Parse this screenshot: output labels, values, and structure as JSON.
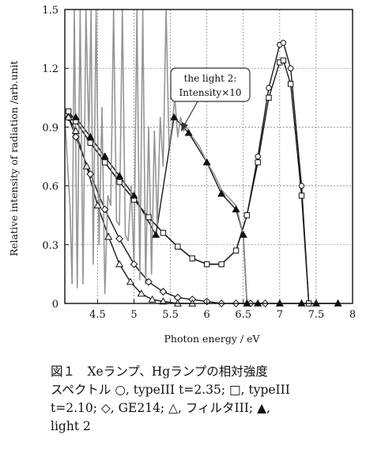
{
  "chart_data": {
    "type": "line",
    "xlabel": "Photon energy / eV",
    "ylabel": "Relative intensity of radiation /arb.unit",
    "xlim": [
      4.05,
      8.0
    ],
    "ylim": [
      0,
      1.5
    ],
    "x_ticks": [
      "4.5",
      "5",
      "5.5",
      "6",
      "6.5",
      "7",
      "7.5",
      "8"
    ],
    "y_ticks": [
      "0",
      "0.3",
      "0.6",
      "0.9",
      "1.2",
      "1.5"
    ],
    "grid": true,
    "annotation": {
      "line1": "the light 2:",
      "line2": "Intensity×10"
    },
    "series": [
      {
        "name": "Xeランプ typeIII t=2.35",
        "marker": "circle",
        "color": "#1a1a1a",
        "x": [
          4.1,
          4.2,
          4.4,
          4.6,
          4.8,
          5.0,
          5.2,
          5.4,
          5.6,
          5.8,
          6.0,
          6.2,
          6.4,
          6.55,
          6.7,
          6.85,
          7.0,
          7.05,
          7.15,
          7.3,
          7.4
        ],
        "y": [
          0.98,
          0.93,
          0.82,
          0.72,
          0.62,
          0.53,
          0.44,
          0.36,
          0.29,
          0.23,
          0.2,
          0.2,
          0.27,
          0.45,
          0.75,
          1.1,
          1.32,
          1.33,
          1.2,
          0.6,
          0.0
        ]
      },
      {
        "name": "Xeランプ typeIII t=2.10",
        "marker": "square",
        "color": "#1a1a1a",
        "x": [
          4.1,
          4.2,
          4.4,
          4.6,
          4.8,
          5.0,
          5.2,
          5.4,
          5.6,
          5.8,
          6.0,
          6.2,
          6.4,
          6.55,
          6.7,
          6.85,
          7.0,
          7.05,
          7.15,
          7.3,
          7.4
        ],
        "y": [
          0.98,
          0.93,
          0.82,
          0.72,
          0.62,
          0.53,
          0.44,
          0.36,
          0.29,
          0.23,
          0.2,
          0.2,
          0.27,
          0.45,
          0.72,
          1.05,
          1.23,
          1.24,
          1.12,
          0.55,
          0.0
        ]
      },
      {
        "name": "GE214",
        "marker": "diamond",
        "color": "#1a1a1a",
        "x": [
          4.1,
          4.2,
          4.4,
          4.6,
          4.8,
          5.0,
          5.2,
          5.4,
          5.6,
          5.8,
          6.0,
          6.2,
          6.4,
          6.6,
          6.8
        ],
        "y": [
          0.95,
          0.85,
          0.66,
          0.48,
          0.33,
          0.2,
          0.11,
          0.06,
          0.03,
          0.02,
          0.01,
          0.0,
          0.0,
          0.0,
          0.0
        ]
      },
      {
        "name": "フィルタIII",
        "marker": "triangle",
        "color": "#1a1a1a",
        "x": [
          4.1,
          4.2,
          4.35,
          4.5,
          4.65,
          4.8,
          4.95,
          5.1,
          5.25,
          5.4,
          5.6,
          5.8
        ],
        "y": [
          0.95,
          0.88,
          0.7,
          0.5,
          0.34,
          0.2,
          0.11,
          0.05,
          0.02,
          0.01,
          0.0,
          0.0
        ]
      },
      {
        "name": "light 2",
        "marker": "filled-triangle",
        "color": "#1a1a1a",
        "x": [
          4.2,
          4.4,
          4.6,
          4.8,
          5.0,
          5.3,
          5.55,
          5.75,
          6.0,
          6.2,
          6.4,
          6.5,
          6.55,
          6.7,
          7.0,
          7.3,
          7.5,
          7.8
        ],
        "y": [
          0.95,
          0.85,
          0.75,
          0.65,
          0.55,
          0.35,
          0.95,
          0.87,
          0.72,
          0.56,
          0.48,
          0.35,
          0.0,
          0.0,
          0.0,
          0.0,
          0.0,
          0.0
        ]
      },
      {
        "name": "Hgランプ",
        "marker": "none",
        "color": "#8a8a8a",
        "x": [
          4.05,
          4.12,
          4.15,
          4.18,
          4.22,
          4.26,
          4.3,
          4.34,
          4.38,
          4.41,
          4.44,
          4.48,
          4.52,
          4.56,
          4.6,
          4.64,
          4.68,
          4.72,
          4.76,
          4.8,
          4.84,
          4.88,
          4.92,
          4.96,
          5.0,
          5.04,
          5.08,
          5.12,
          5.16,
          5.2,
          5.24,
          5.28,
          5.32,
          5.36,
          5.4,
          5.44,
          5.48,
          5.52,
          5.56,
          5.6,
          5.64,
          5.68,
          5.72,
          5.8,
          5.9,
          6.0,
          6.1,
          6.2,
          6.3,
          6.4,
          6.5,
          6.55
        ],
        "y": [
          0.95,
          0.5,
          0.1,
          1.5,
          0.08,
          1.5,
          0.1,
          1.5,
          0.85,
          1.5,
          0.2,
          1.5,
          0.3,
          1.0,
          0.05,
          0.55,
          0.5,
          1.5,
          0.42,
          0.4,
          1.5,
          0.35,
          0.32,
          0.6,
          0.2,
          1.5,
          0.12,
          1.5,
          0.1,
          0.9,
          0.15,
          0.88,
          0.4,
          0.95,
          0.7,
          1.5,
          0.8,
          0.9,
          1.05,
          0.85,
          0.95,
          0.88,
          0.9,
          0.85,
          0.8,
          0.72,
          0.66,
          0.58,
          0.54,
          0.5,
          0.35,
          0.0
        ]
      }
    ]
  },
  "caption": {
    "line1": "図１　Xeランプ、Hgランプの相対強度",
    "line2": "スペクトル ○, typeIII t=2.35; □, typeIII",
    "line3": "t=2.10; ◇, GE214; △, フィルタIII; ▲,",
    "line4": "light 2"
  }
}
